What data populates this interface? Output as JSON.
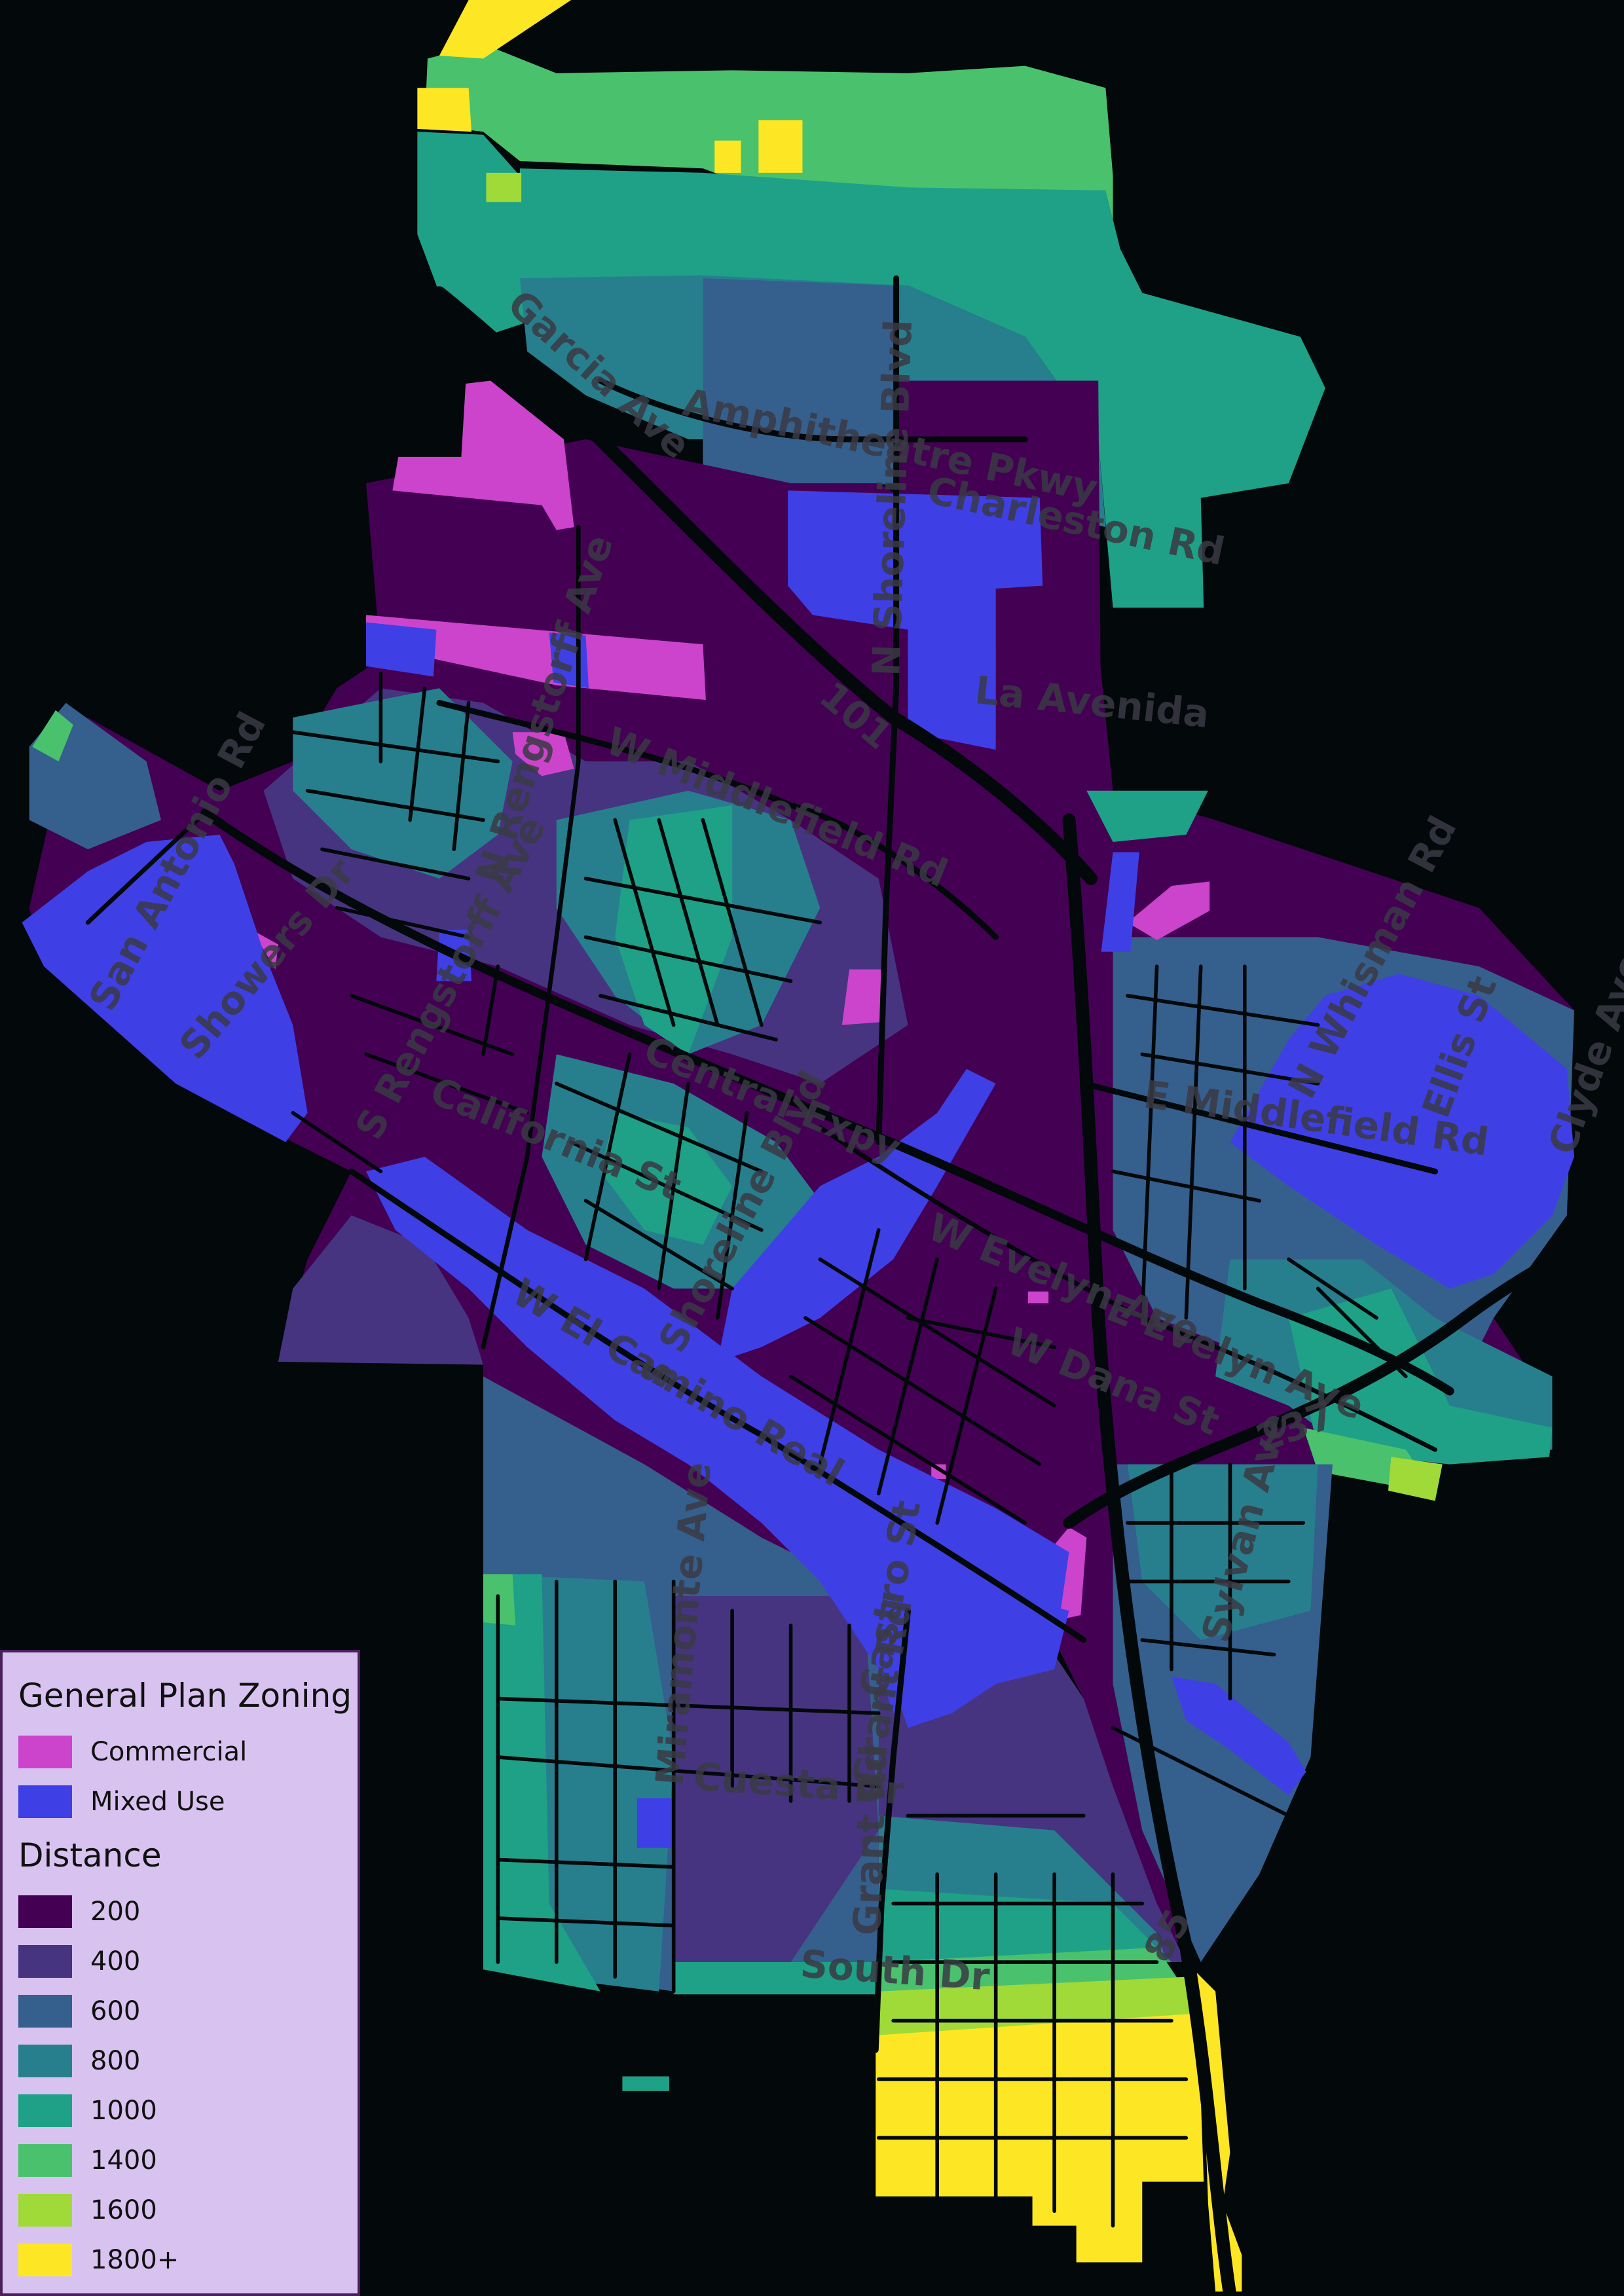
{
  "palette": {
    "d200": "#440154",
    "d400": "#463480",
    "d600": "#355f8d",
    "d800": "#277f8e",
    "d1000": "#1fa187",
    "d1400": "#4ac16d",
    "d1600": "#a0da39",
    "d1800": "#fde725",
    "commercial": "#cc44cc",
    "mixed": "#3f3fe6",
    "road": "#03080a"
  },
  "legend": {
    "zoning_title": "General Plan Zoning",
    "zoning_items": [
      {
        "label": "Commercial",
        "color": "#cc44cc"
      },
      {
        "label": "Mixed Use",
        "color": "#3f3fe6"
      }
    ],
    "distance_title": "Distance",
    "distance_items": [
      {
        "label": "200",
        "color": "#440154"
      },
      {
        "label": "400",
        "color": "#463480"
      },
      {
        "label": "600",
        "color": "#355f8d"
      },
      {
        "label": "800",
        "color": "#277f8e"
      },
      {
        "label": "1000",
        "color": "#1fa187"
      },
      {
        "label": "1400",
        "color": "#4ac16d"
      },
      {
        "label": "1600",
        "color": "#a0da39"
      },
      {
        "label": "1800+",
        "color": "#fde725"
      }
    ]
  },
  "streets": {
    "garcia": "Garcia Ave",
    "amphitheatre": "Amphitheatre Pkwy",
    "charleston": "Charleston Rd",
    "shoreline_n": "N Shoreline Blvd",
    "la_avenida": "La Avenida",
    "hwy101": "101",
    "middlefield_w": "W Middlefield Rd",
    "rengstorff_n": "N Rengstorff Ave",
    "san_antonio": "San Antonio Rd",
    "showers": "Showers Dr",
    "rengstorff_s": "S Rengstorff Ave",
    "california": "California St",
    "central": "Central Expy",
    "whisman_n": "N Whisman Rd",
    "middlefield_e": "E Middlefield Rd",
    "ellis": "Ellis St",
    "clyde": "Clyde Ave",
    "evelyn_w": "W Evelyn Ave",
    "el_camino": "W El Camino Real",
    "shoreline_s": "S Shoreline Blvd",
    "dana": "W Dana St",
    "evelyn_e": "E Evelyn Ave",
    "hwy237": "237",
    "sylvan": "Sylvan Ave",
    "miramonte": "Miramonte Ave",
    "cuesta": "Cuesta Dr",
    "hans": "Castro St",
    "grant_upper": "Grant Rd",
    "grant_lower": "Grant Rd",
    "south_dr": "South Dr",
    "hwy85": "85"
  }
}
